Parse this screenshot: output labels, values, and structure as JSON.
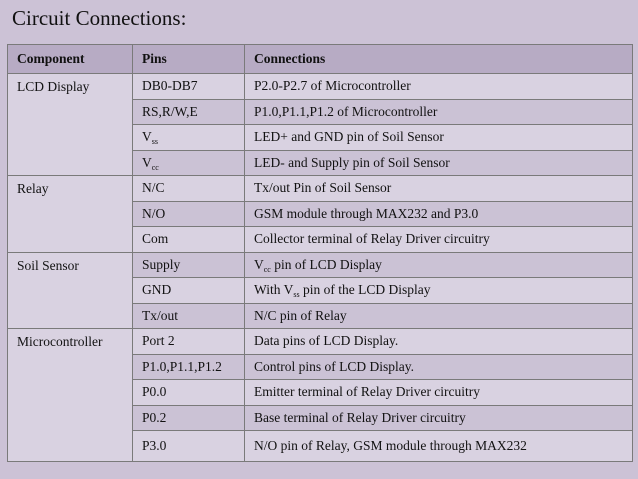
{
  "title": "Circuit Connections:",
  "headers": {
    "component": "Component",
    "pins": "Pins",
    "connections": "Connections"
  },
  "groups": [
    {
      "component": "LCD Display",
      "rows": [
        {
          "pin": "DB0-DB7",
          "connection": "P2.0-P2.7 of Microcontroller"
        },
        {
          "pin": "RS,R/W,E",
          "connection": "P1.0,P1.1,P1.2 of Microcontroller"
        },
        {
          "pin_main": "V",
          "pin_sub": "ss",
          "connection": "LED+ and GND pin of Soil Sensor"
        },
        {
          "pin_main": "V",
          "pin_sub": "cc",
          "connection": "LED- and Supply pin of Soil Sensor"
        }
      ]
    },
    {
      "component": "Relay",
      "rows": [
        {
          "pin": "N/C",
          "connection": "Tx/out Pin of Soil Sensor"
        },
        {
          "pin": "N/O",
          "connection": "GSM module through MAX232 and P3.0"
        },
        {
          "pin": "Com",
          "connection": "Collector terminal of Relay Driver circuitry"
        }
      ]
    },
    {
      "component": "Soil Sensor",
      "rows": [
        {
          "pin": "Supply",
          "conn_pre": "V",
          "conn_sub": "cc",
          "conn_post": " pin of LCD Display"
        },
        {
          "pin": "GND",
          "conn_pre": "With V",
          "conn_sub": "ss",
          "conn_post": " pin of the LCD Display"
        },
        {
          "pin": "Tx/out",
          "connection": "N/C pin of Relay"
        }
      ]
    },
    {
      "component": "Microcontroller",
      "rows": [
        {
          "pin": "Port 2",
          "connection": "Data pins of LCD Display."
        },
        {
          "pin": "P1.0,P1.1,P1.2",
          "connection": "Control pins of LCD Display."
        },
        {
          "pin": "P0.0",
          "connection": "Emitter terminal of Relay Driver circuitry"
        },
        {
          "pin": "P0.2",
          "connection": "Base terminal of Relay Driver circuitry"
        },
        {
          "pin": "P3.0",
          "connection": "N/O pin of Relay, GSM module through MAX232"
        }
      ]
    }
  ]
}
